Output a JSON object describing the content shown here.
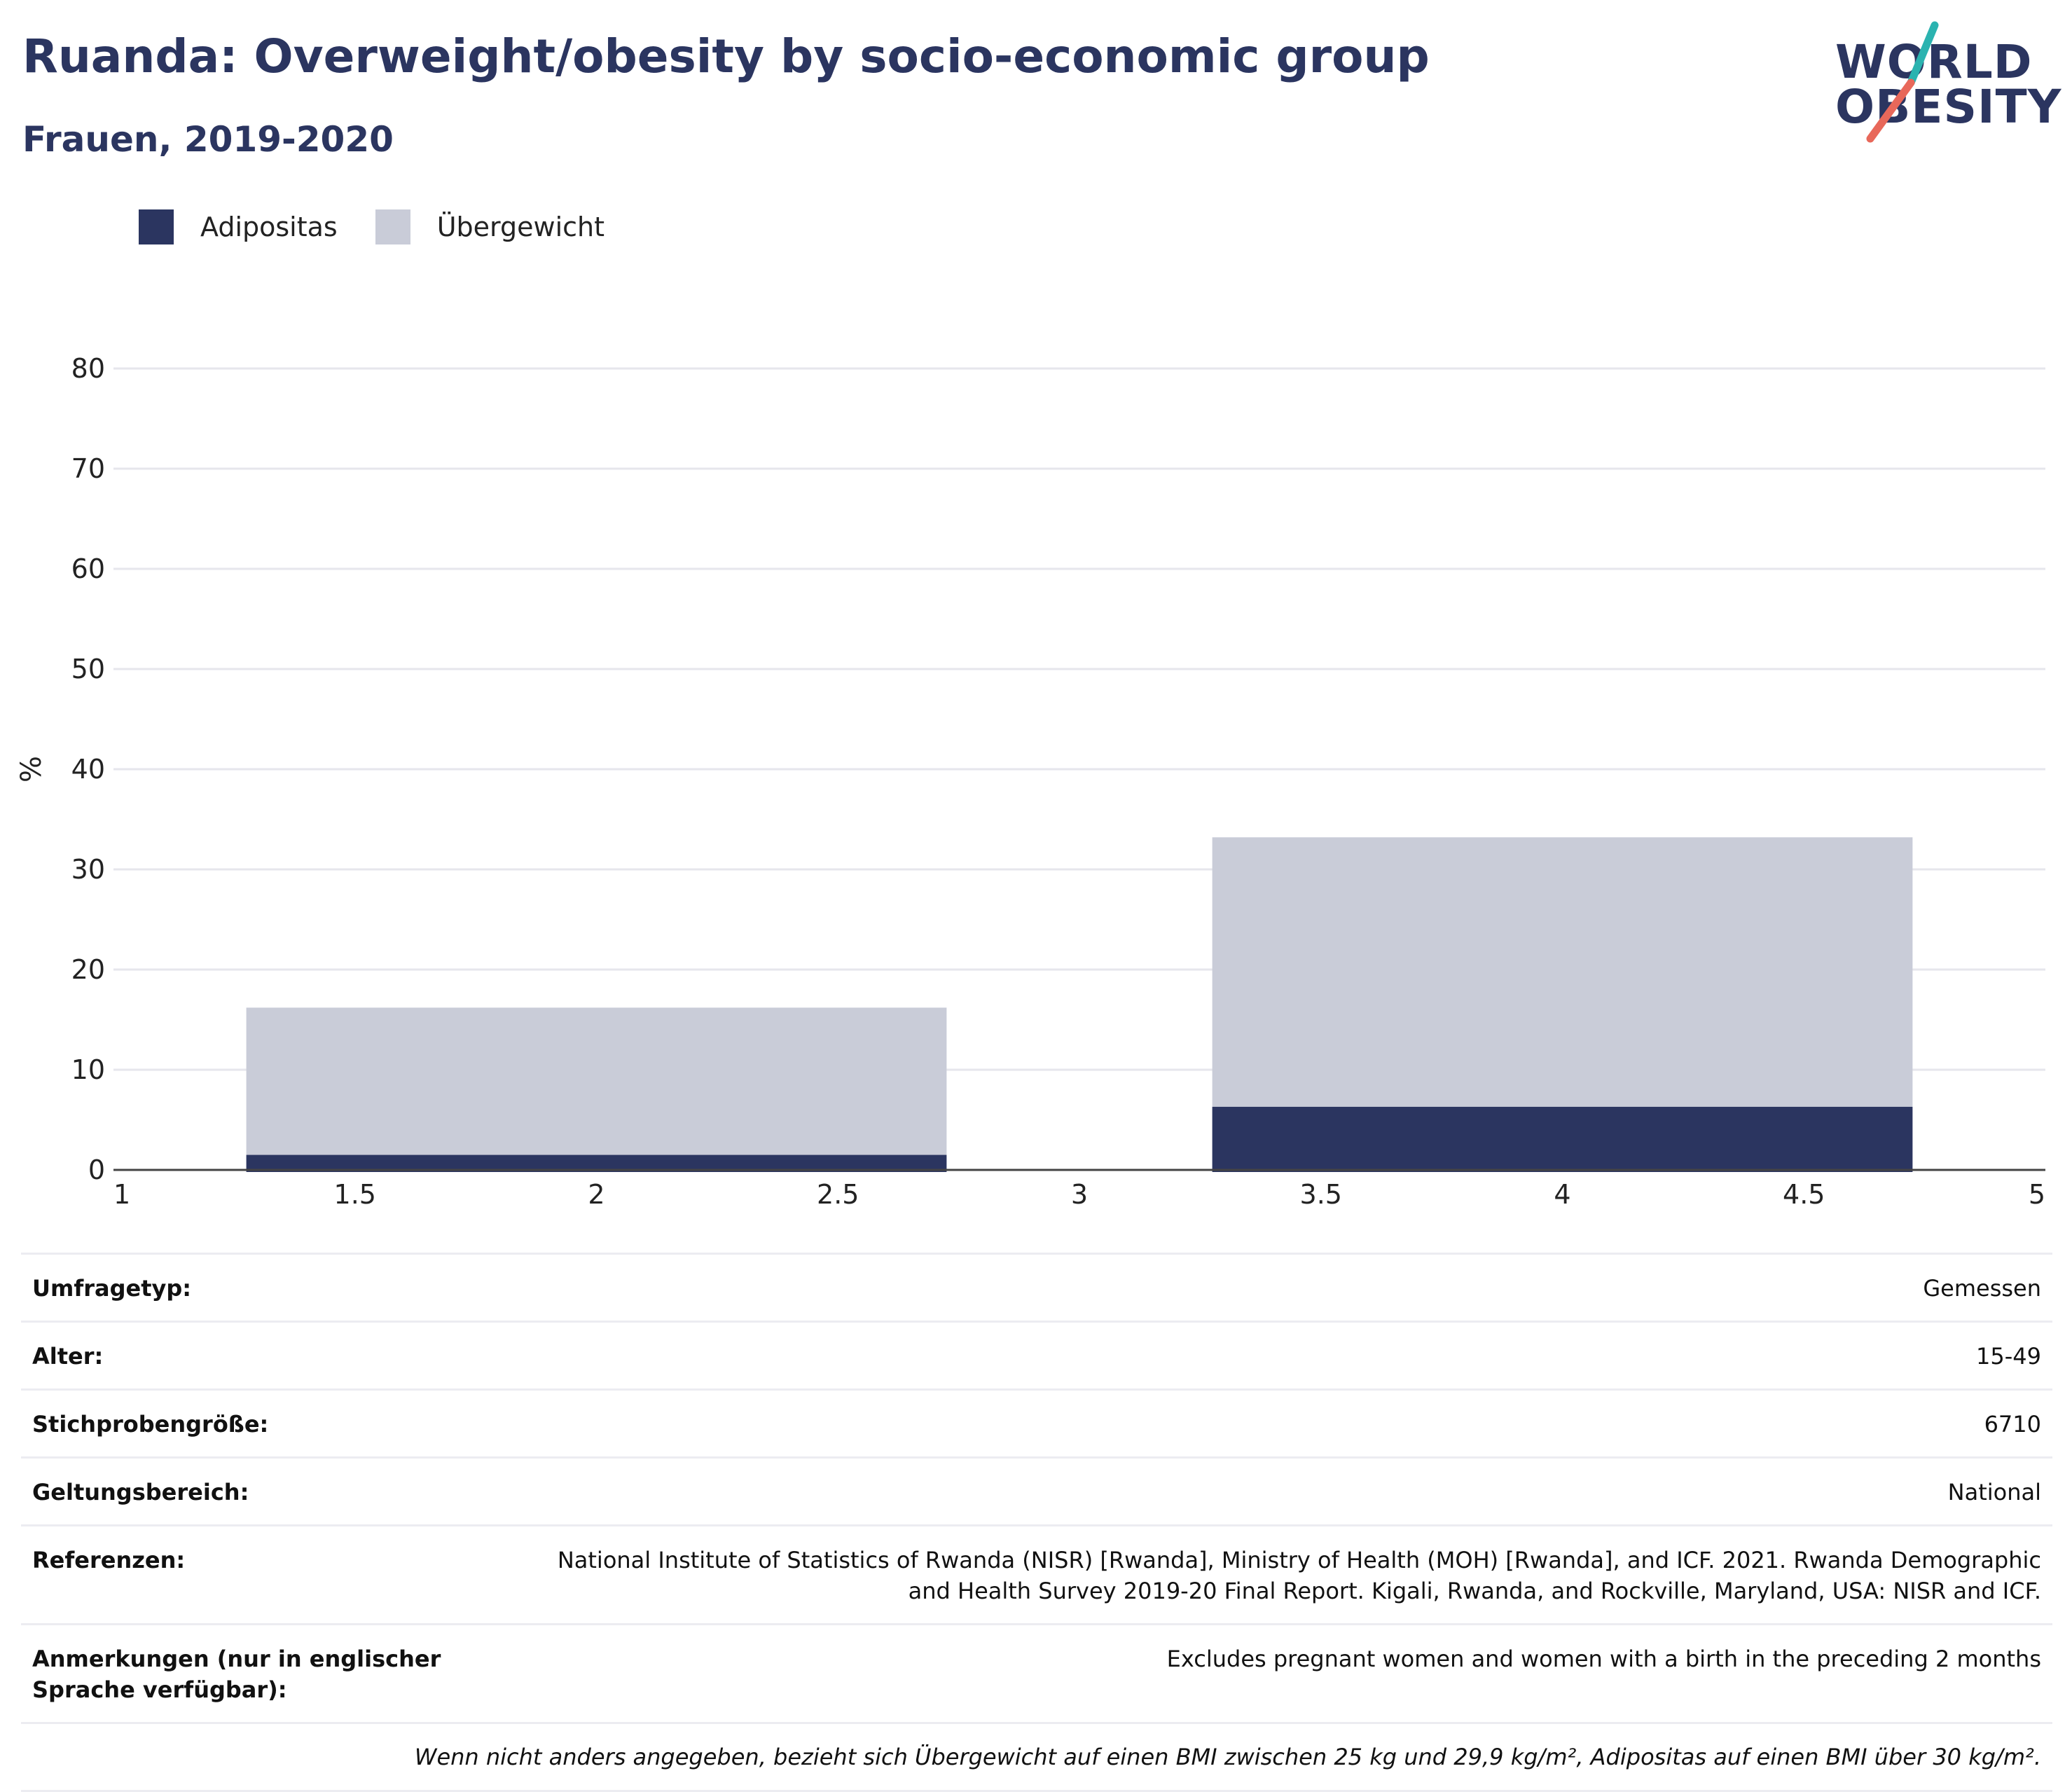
{
  "header": {
    "title": "Ruanda: Overweight/obesity by socio-economic group",
    "subtitle": "Frauen, 2019-2020"
  },
  "logo": {
    "line1": "WORLD",
    "line2": "OBESITY",
    "accent_teal": "#2bb3b0",
    "accent_coral": "#e8685a"
  },
  "legend": {
    "items": [
      {
        "label": "Adipositas",
        "color": "#2b3560"
      },
      {
        "label": "Übergewicht",
        "color": "#c9ccd8"
      }
    ]
  },
  "chart_data": {
    "type": "bar",
    "stacked": true,
    "ylabel": "%",
    "xlabel": "",
    "xlim": [
      1,
      5
    ],
    "ylim": [
      0,
      80
    ],
    "x_ticks": [
      "1",
      "1.5",
      "2",
      "2.5",
      "3",
      "3.5",
      "4",
      "4.5",
      "5"
    ],
    "y_ticks": [
      "0",
      "10",
      "20",
      "30",
      "40",
      "50",
      "60",
      "70",
      "80"
    ],
    "grid": true,
    "bar_width": 1.45,
    "bars": [
      {
        "x": 2,
        "adipositas": 1.5,
        "total": 16.2
      },
      {
        "x": 4,
        "adipositas": 6.3,
        "total": 33.2
      }
    ],
    "series": [
      {
        "name": "Adipositas",
        "color": "#2b3560"
      },
      {
        "name": "Übergewicht",
        "color": "#c9ccd8"
      }
    ]
  },
  "meta": {
    "survey_type_label": "Umfragetyp:",
    "survey_type_value": "Gemessen",
    "age_label": "Alter:",
    "age_value": "15-49",
    "sample_label": "Stichprobengröße:",
    "sample_value": "6710",
    "scope_label": "Geltungsbereich:",
    "scope_value": "National",
    "references_label": "Referenzen:",
    "references_value": "National Institute of Statistics of Rwanda (NISR) [Rwanda], Ministry of Health (MOH) [Rwanda], and ICF. 2021. Rwanda Demographic and Health Survey 2019-20 Final Report. Kigali, Rwanda, and Rockville, Maryland, USA: NISR and ICF.",
    "notes_label": "Anmerkungen (nur in englischer Sprache verfügbar):",
    "notes_value": "Excludes pregnant women and women with a birth in the preceding 2 months",
    "footnote": "Wenn nicht anders angegeben, bezieht sich Übergewicht auf einen BMI zwischen 25 kg und 29,9 kg/m², Adipositas auf einen BMI über 30 kg/m²."
  }
}
